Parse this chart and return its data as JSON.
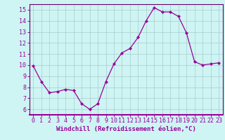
{
  "x": [
    0,
    1,
    2,
    3,
    4,
    5,
    6,
    7,
    8,
    9,
    10,
    11,
    12,
    13,
    14,
    15,
    16,
    17,
    18,
    19,
    20,
    21,
    22,
    23
  ],
  "y": [
    9.9,
    8.5,
    7.5,
    7.6,
    7.8,
    7.7,
    6.5,
    6.0,
    6.5,
    8.5,
    10.1,
    11.1,
    11.5,
    12.5,
    14.0,
    15.2,
    14.8,
    14.8,
    14.4,
    12.9,
    10.3,
    10.0,
    10.1,
    10.2
  ],
  "line_color": "#990099",
  "marker": "D",
  "markersize": 2.0,
  "linewidth": 0.9,
  "xlabel": "Windchill (Refroidissement éolien,°C)",
  "xlim": [
    -0.5,
    23.5
  ],
  "ylim": [
    5.5,
    15.5
  ],
  "yticks": [
    6,
    7,
    8,
    9,
    10,
    11,
    12,
    13,
    14,
    15
  ],
  "xticks": [
    0,
    1,
    2,
    3,
    4,
    5,
    6,
    7,
    8,
    9,
    10,
    11,
    12,
    13,
    14,
    15,
    16,
    17,
    18,
    19,
    20,
    21,
    22,
    23
  ],
  "background_color": "#cef4f4",
  "grid_color": "#aacccc",
  "line_border_color": "#660066",
  "tick_color": "#990099",
  "label_color": "#990099",
  "xlabel_fontsize": 6.5,
  "tick_fontsize": 6.0
}
